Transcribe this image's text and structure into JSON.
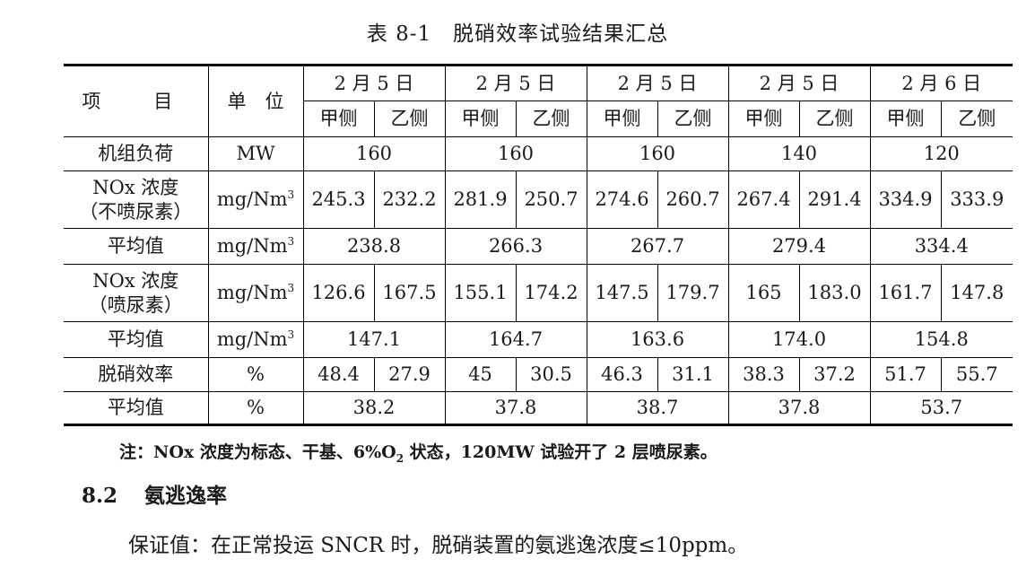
{
  "caption": "表 8-1　脱硝效率试验结果汇总",
  "header": {
    "item": "项　目",
    "unit": "单　位",
    "dates": [
      "2 月 5 日",
      "2 月 5 日",
      "2 月 5 日",
      "2 月 5 日",
      "2 月 6 日"
    ],
    "side_a": "甲侧",
    "side_b": "乙侧"
  },
  "rows": {
    "load": {
      "label": "机组负荷",
      "unit": "MW",
      "values": [
        "160",
        "160",
        "160",
        "140",
        "120"
      ]
    },
    "nox_before": {
      "label_1": "NOx 浓度",
      "label_2": "（不喷尿素）",
      "unit_base": "mg/Nm",
      "unit_sup": "3",
      "values": [
        "245.3",
        "232.2",
        "281.9",
        "250.7",
        "274.6",
        "260.7",
        "267.4",
        "291.4",
        "334.9",
        "333.9"
      ]
    },
    "avg_before": {
      "label": "平均值",
      "unit_base": "mg/Nm",
      "unit_sup": "3",
      "values": [
        "238.8",
        "266.3",
        "267.7",
        "279.4",
        "334.4"
      ]
    },
    "nox_after": {
      "label_1": "NOx 浓度",
      "label_2": "（喷尿素）",
      "unit_base": "mg/Nm",
      "unit_sup": "3",
      "values": [
        "126.6",
        "167.5",
        "155.1",
        "174.2",
        "147.5",
        "179.7",
        "165",
        "183.0",
        "161.7",
        "147.8"
      ]
    },
    "avg_after": {
      "label": "平均值",
      "unit_base": "mg/Nm",
      "unit_sup": "3",
      "values": [
        "147.1",
        "164.7",
        "163.6",
        "174.0",
        "154.8"
      ]
    },
    "efficiency": {
      "label": "脱硝效率",
      "unit": "%",
      "values": [
        "48.4",
        "27.9",
        "45",
        "30.5",
        "46.3",
        "31.1",
        "38.3",
        "37.2",
        "51.7",
        "55.7"
      ]
    },
    "avg_efficiency": {
      "label": "平均值",
      "unit": "%",
      "values": [
        "38.2",
        "37.8",
        "38.7",
        "37.8",
        "53.7"
      ]
    }
  },
  "note": {
    "part1": "注：NOx 浓度为标态、干基、6%O",
    "sub": "2",
    "part2": " 状态，120MW 试验开了 2 层喷尿素。"
  },
  "section": {
    "number": "8.2",
    "title": "氨逃逸率"
  },
  "guarantee": "保证值：在正常投运 SNCR 时，脱硝装置的氨逃逸浓度≤10ppm。"
}
